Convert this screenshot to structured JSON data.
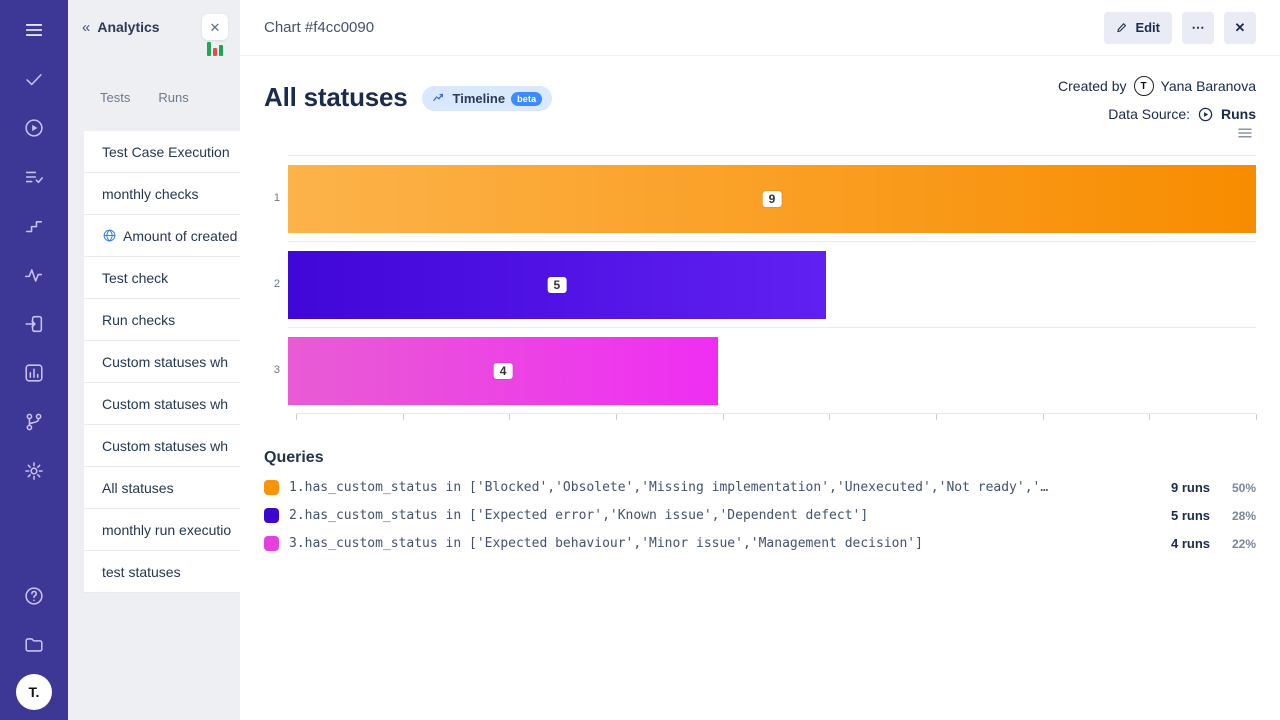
{
  "sidebar": {
    "icons": [
      {
        "name": "menu"
      },
      {
        "name": "check"
      },
      {
        "name": "play-circle"
      },
      {
        "name": "list-check"
      },
      {
        "name": "steps"
      },
      {
        "name": "activity"
      },
      {
        "name": "import"
      },
      {
        "name": "bar-chart"
      },
      {
        "name": "branch"
      },
      {
        "name": "gear"
      }
    ],
    "bottom_icons": [
      {
        "name": "help"
      },
      {
        "name": "projects"
      }
    ],
    "avatar_label": "T."
  },
  "panel": {
    "back_icon": "«",
    "title": "Analytics",
    "close_label": "✕",
    "tabs": [
      {
        "label": "Tests"
      },
      {
        "label": "Runs"
      }
    ],
    "items": [
      {
        "label": "Test Case Execution"
      },
      {
        "label": "monthly checks"
      },
      {
        "label": "Amount of created",
        "icon": "globe"
      },
      {
        "label": "Test check"
      },
      {
        "label": "Run checks"
      },
      {
        "label": "Custom statuses wh"
      },
      {
        "label": "Custom statuses wh"
      },
      {
        "label": "Custom statuses wh"
      },
      {
        "label": "All statuses"
      },
      {
        "label": "monthly run executio"
      },
      {
        "label": "test statuses"
      }
    ]
  },
  "header": {
    "title": "Chart #f4cc0090",
    "edit_label": "Edit",
    "more_label": "⋯",
    "close_label": "✕"
  },
  "chart_header": {
    "title": "All statuses",
    "timeline_label": "Timeline",
    "beta_label": "beta",
    "created_by_label": "Created by",
    "creator_avatar": "T",
    "created_by_name": "Yana Baranova",
    "data_source_label": "Data Source:",
    "data_source_value": "Runs"
  },
  "chart_data": {
    "type": "bar",
    "orientation": "horizontal",
    "categories": [
      "1",
      "2",
      "3"
    ],
    "values": [
      9,
      5,
      4
    ],
    "value_labels": [
      "9",
      "5",
      "4"
    ],
    "xlim": [
      0,
      9
    ],
    "x_ticks": [
      0,
      1,
      2,
      3,
      4,
      5,
      6,
      7,
      8,
      9
    ],
    "grid": true,
    "bar_gradients": [
      {
        "from": "#fcb34a",
        "to": "#f88c00"
      },
      {
        "from": "#4106d8",
        "to": "#6120f2"
      },
      {
        "from": "#e85cd3",
        "to": "#ef2ef3"
      }
    ]
  },
  "queries": {
    "title": "Queries",
    "rows": [
      {
        "color": "#f8940a",
        "text": "1.has_custom_status in ['Blocked','Obsolete','Missing implementation','Unexecuted','Not ready','…",
        "runs": "9 runs",
        "percent": "50%"
      },
      {
        "color": "#3a07cf",
        "text": "2.has_custom_status in ['Expected error','Known issue','Dependent defect']",
        "runs": "5 runs",
        "percent": "28%"
      },
      {
        "color": "#e640dc",
        "text": "3.has_custom_status in ['Expected behaviour','Minor issue','Management decision']",
        "runs": "4 runs",
        "percent": "22%"
      }
    ]
  }
}
